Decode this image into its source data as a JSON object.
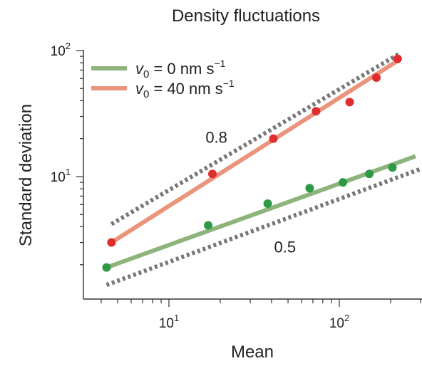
{
  "chart_data": {
    "type": "scatter",
    "title": "Density fluctuations",
    "xlabel": "Mean",
    "ylabel": "Standard deviation",
    "xscale": "log",
    "yscale": "log",
    "xlim": [
      3.5,
      300
    ],
    "ylim": [
      1.2,
      100
    ],
    "x_ticks": [
      {
        "value": 10,
        "base": "10",
        "exp": "1"
      },
      {
        "value": 100,
        "base": "10",
        "exp": "2"
      }
    ],
    "y_ticks": [
      {
        "value": 10,
        "base": "10",
        "exp": "1"
      },
      {
        "value": 100,
        "base": "10",
        "exp": "2"
      }
    ],
    "legend_position": "top-left",
    "series": [
      {
        "name": "0 nm s",
        "legend": {
          "var": "v",
          "sub": "0",
          "eq": " = 0 nm s",
          "sup": "−1"
        },
        "color": "#8db47a",
        "marker_color": "#2f9a45",
        "x": [
          4.3,
          17,
          38,
          67,
          105,
          150,
          205
        ],
        "y": [
          1.9,
          4.1,
          6.1,
          8.1,
          9.0,
          10.5,
          11.8
        ],
        "fit_x": [
          4.3,
          280
        ],
        "fit_y": [
          1.9,
          14.5
        ]
      },
      {
        "name": "40 nm s",
        "legend": {
          "var": "v",
          "sub": "0",
          "eq": " = 40 nm s",
          "sup": "−1"
        },
        "color": "#ec937c",
        "marker_color": "#e02d2d",
        "x": [
          4.6,
          18,
          41,
          73,
          115,
          165,
          220
        ],
        "y": [
          3.0,
          10.5,
          20.0,
          33.0,
          39.0,
          61.0,
          86.0
        ],
        "fit_x": [
          4.6,
          220
        ],
        "fit_y": [
          3.0,
          83.0
        ]
      }
    ],
    "guide_lines": [
      {
        "label": "0.8",
        "slope": 0.8,
        "x": [
          4.6,
          230
        ],
        "y": [
          4.2,
          96.0
        ],
        "label_at": [
          19.0,
          18.5
        ]
      },
      {
        "label": "0.5",
        "slope": 0.5,
        "x": [
          4.3,
          300
        ],
        "y": [
          1.38,
          11.5
        ],
        "label_at": [
          48.0,
          2.5
        ]
      }
    ],
    "grid": false
  }
}
